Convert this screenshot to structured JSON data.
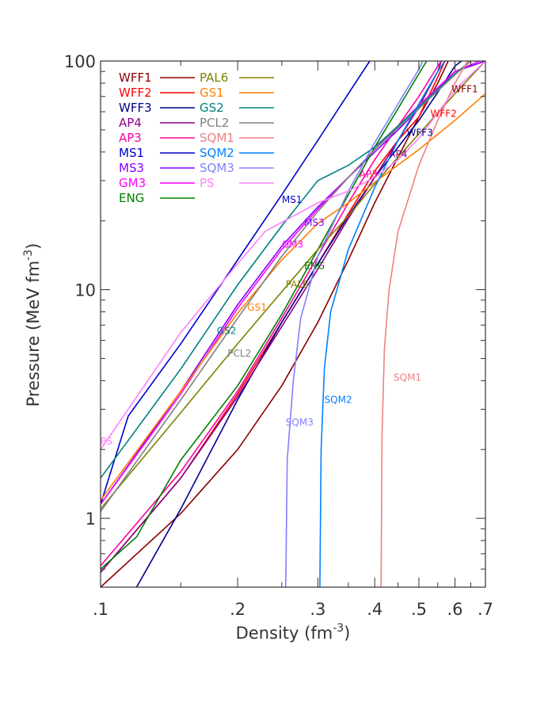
{
  "chart_data": {
    "type": "line",
    "title": "",
    "xlabel": "Density (fm",
    "xlabel_exp": "-3",
    "xlabel_close": ")",
    "ylabel": "Pressure (MeV fm",
    "ylabel_exp": "-3",
    "ylabel_close": ")",
    "xscale": "log",
    "yscale": "log",
    "xlim": [
      0.1,
      0.7
    ],
    "ylim": [
      0.5,
      100
    ],
    "x_ticks": [
      {
        "value": 0.1,
        "label": ".1"
      },
      {
        "value": 0.2,
        "label": ".2"
      },
      {
        "value": 0.3,
        "label": ".3"
      },
      {
        "value": 0.4,
        "label": ".4"
      },
      {
        "value": 0.5,
        "label": ".5"
      },
      {
        "value": 0.6,
        "label": ".6"
      },
      {
        "value": 0.7,
        "label": ".7"
      }
    ],
    "y_ticks": [
      {
        "value": 1,
        "label": "1"
      },
      {
        "value": 10,
        "label": "10"
      },
      {
        "value": 100,
        "label": "100"
      }
    ],
    "grid": false,
    "legend_position": "top-left",
    "series": [
      {
        "name": "WFF1",
        "color": "#8b0000",
        "label_at": [
          0.59,
          73
        ],
        "points": [
          [
            0.1,
            0.5
          ],
          [
            0.15,
            1.05
          ],
          [
            0.2,
            2.0
          ],
          [
            0.25,
            3.8
          ],
          [
            0.3,
            7.2
          ],
          [
            0.35,
            13.5
          ],
          [
            0.4,
            24
          ],
          [
            0.45,
            38
          ],
          [
            0.5,
            57
          ],
          [
            0.55,
            80
          ],
          [
            0.58,
            100
          ]
        ]
      },
      {
        "name": "WFF2",
        "color": "#ff0000",
        "label_at": [
          0.53,
          57
        ],
        "points": [
          [
            0.1,
            0.58
          ],
          [
            0.15,
            1.5
          ],
          [
            0.2,
            3.5
          ],
          [
            0.25,
            7.2
          ],
          [
            0.3,
            13
          ],
          [
            0.35,
            21.5
          ],
          [
            0.4,
            33
          ],
          [
            0.45,
            45
          ],
          [
            0.5,
            57
          ],
          [
            0.55,
            85
          ],
          [
            0.57,
            100
          ]
        ]
      },
      {
        "name": "WFF3",
        "color": "#00008b",
        "label_at": [
          0.47,
          47
        ],
        "points": [
          [
            0.12,
            0.5
          ],
          [
            0.15,
            1.1
          ],
          [
            0.2,
            3.3
          ],
          [
            0.25,
            7.2
          ],
          [
            0.3,
            13
          ],
          [
            0.35,
            21
          ],
          [
            0.4,
            31
          ],
          [
            0.45,
            42
          ],
          [
            0.5,
            55
          ],
          [
            0.55,
            73
          ],
          [
            0.6,
            95
          ],
          [
            0.62,
            100
          ]
        ]
      },
      {
        "name": "AP4",
        "color": "#8b008b",
        "label_at": [
          0.43,
          38
        ],
        "points": [
          [
            0.1,
            0.58
          ],
          [
            0.15,
            1.5
          ],
          [
            0.2,
            3.4
          ],
          [
            0.25,
            6.9
          ],
          [
            0.3,
            12.3
          ],
          [
            0.35,
            20.5
          ],
          [
            0.4,
            31
          ],
          [
            0.45,
            45
          ],
          [
            0.5,
            63
          ],
          [
            0.55,
            90
          ],
          [
            0.56,
            100
          ]
        ]
      },
      {
        "name": "AP3",
        "color": "#ff00a0",
        "label_at": [
          0.37,
          31
        ],
        "points": [
          [
            0.1,
            0.62
          ],
          [
            0.15,
            1.6
          ],
          [
            0.2,
            3.6
          ],
          [
            0.25,
            7.5
          ],
          [
            0.3,
            14
          ],
          [
            0.35,
            24
          ],
          [
            0.4,
            37
          ],
          [
            0.45,
            52
          ],
          [
            0.5,
            70
          ],
          [
            0.55,
            95
          ],
          [
            0.56,
            100
          ]
        ]
      },
      {
        "name": "MS1",
        "color": "#0000cc",
        "label_at": [
          0.25,
          24
        ],
        "points": [
          [
            0.1,
            1.15
          ],
          [
            0.115,
            2.8
          ],
          [
            0.15,
            5.8
          ],
          [
            0.2,
            13.5
          ],
          [
            0.25,
            26
          ],
          [
            0.3,
            45
          ],
          [
            0.35,
            72
          ],
          [
            0.39,
            100
          ]
        ]
      },
      {
        "name": "MS3",
        "color": "#8000ff",
        "label_at": [
          0.28,
          19
        ],
        "points": [
          [
            0.1,
            1.15
          ],
          [
            0.15,
            3.6
          ],
          [
            0.2,
            8.6
          ],
          [
            0.25,
            15.5
          ],
          [
            0.3,
            23
          ],
          [
            0.35,
            31
          ],
          [
            0.4,
            40
          ],
          [
            0.45,
            50
          ],
          [
            0.5,
            62
          ],
          [
            0.6,
            90
          ],
          [
            0.7,
            100
          ]
        ]
      },
      {
        "name": "GM3",
        "color": "#ff00ff",
        "label_at": [
          0.25,
          15.3
        ],
        "points": [
          [
            0.1,
            1.15
          ],
          [
            0.15,
            3.5
          ],
          [
            0.2,
            8.3
          ],
          [
            0.25,
            15
          ],
          [
            0.3,
            22.5
          ],
          [
            0.35,
            31
          ],
          [
            0.4,
            41
          ],
          [
            0.45,
            52
          ],
          [
            0.5,
            64
          ],
          [
            0.6,
            90
          ],
          [
            0.68,
            100
          ]
        ]
      },
      {
        "name": "ENG",
        "color": "#008000",
        "label_at": [
          0.28,
          12.3
        ],
        "points": [
          [
            0.1,
            0.6
          ],
          [
            0.12,
            0.83
          ],
          [
            0.15,
            1.8
          ],
          [
            0.2,
            3.8
          ],
          [
            0.25,
            7.8
          ],
          [
            0.3,
            15
          ],
          [
            0.35,
            26
          ],
          [
            0.4,
            42
          ],
          [
            0.45,
            62
          ],
          [
            0.5,
            88
          ],
          [
            0.52,
            100
          ]
        ]
      },
      {
        "name": "PAL6",
        "color": "#808000",
        "label_at": [
          0.255,
          10.2
        ],
        "points": [
          [
            0.1,
            1.1
          ],
          [
            0.15,
            2.9
          ],
          [
            0.2,
            5.8
          ],
          [
            0.25,
            9.8
          ],
          [
            0.3,
            15
          ],
          [
            0.35,
            21
          ],
          [
            0.4,
            29
          ],
          [
            0.45,
            38
          ],
          [
            0.5,
            48
          ],
          [
            0.6,
            72
          ],
          [
            0.7,
            100
          ]
        ]
      },
      {
        "name": "GS1",
        "color": "#ff8000",
        "label_at": [
          0.21,
          8.1
        ],
        "points": [
          [
            0.1,
            1.2
          ],
          [
            0.15,
            3.6
          ],
          [
            0.2,
            7.9
          ],
          [
            0.25,
            13.5
          ],
          [
            0.3,
            19.5
          ],
          [
            0.35,
            24
          ],
          [
            0.4,
            29.5
          ],
          [
            0.5,
            41
          ],
          [
            0.6,
            55
          ],
          [
            0.7,
            72
          ]
        ]
      },
      {
        "name": "GS2",
        "color": "#008080",
        "label_at": [
          0.18,
          6.4
        ],
        "points": [
          [
            0.1,
            1.5
          ],
          [
            0.15,
            4.5
          ],
          [
            0.2,
            10.5
          ],
          [
            0.25,
            19
          ],
          [
            0.3,
            30
          ],
          [
            0.35,
            35
          ],
          [
            0.4,
            42
          ],
          [
            0.5,
            63
          ],
          [
            0.6,
            88
          ],
          [
            0.65,
            100
          ]
        ]
      },
      {
        "name": "PCL2",
        "color": "#808080",
        "label_at": [
          0.19,
          5.1
        ],
        "points": [
          [
            0.1,
            1.07
          ],
          [
            0.15,
            3.3
          ],
          [
            0.2,
            7.5
          ],
          [
            0.25,
            14
          ],
          [
            0.3,
            22
          ],
          [
            0.35,
            31
          ],
          [
            0.4,
            41
          ],
          [
            0.5,
            62
          ],
          [
            0.6,
            87
          ],
          [
            0.65,
            100
          ]
        ]
      },
      {
        "name": "SQM1",
        "color": "#f08080",
        "label_at": [
          0.44,
          4.0
        ],
        "points": [
          [
            0.413,
            0.5
          ],
          [
            0.415,
            2.3
          ],
          [
            0.42,
            5.5
          ],
          [
            0.43,
            10
          ],
          [
            0.45,
            18
          ],
          [
            0.5,
            35
          ],
          [
            0.55,
            55
          ],
          [
            0.6,
            80
          ],
          [
            0.64,
            100
          ]
        ]
      },
      {
        "name": "SQM2",
        "color": "#0080ff",
        "label_at": [
          0.31,
          3.2
        ],
        "points": [
          [
            0.303,
            0.5
          ],
          [
            0.305,
            2.0
          ],
          [
            0.31,
            4.5
          ],
          [
            0.32,
            8
          ],
          [
            0.35,
            15
          ],
          [
            0.4,
            28
          ],
          [
            0.45,
            45
          ],
          [
            0.5,
            65
          ],
          [
            0.55,
            90
          ],
          [
            0.57,
            100
          ]
        ]
      },
      {
        "name": "SQM3",
        "color": "#8080ff",
        "label_at": [
          0.255,
          2.55
        ],
        "points": [
          [
            0.255,
            0.5
          ],
          [
            0.257,
            1.8
          ],
          [
            0.265,
            4
          ],
          [
            0.275,
            7.5
          ],
          [
            0.3,
            14
          ],
          [
            0.35,
            27
          ],
          [
            0.4,
            44
          ],
          [
            0.45,
            65
          ],
          [
            0.5,
            92
          ],
          [
            0.51,
            100
          ]
        ]
      },
      {
        "name": "PS",
        "color": "#ff80ff",
        "label_at": [
          0.1,
          2.1
        ],
        "points": [
          [
            0.1,
            2.0
          ],
          [
            0.15,
            6.5
          ],
          [
            0.2,
            13
          ],
          [
            0.23,
            18
          ],
          [
            0.3,
            24
          ],
          [
            0.35,
            27
          ],
          [
            0.4,
            31
          ],
          [
            0.45,
            37
          ],
          [
            0.5,
            46
          ],
          [
            0.6,
            75
          ],
          [
            0.7,
            100
          ]
        ]
      }
    ]
  }
}
